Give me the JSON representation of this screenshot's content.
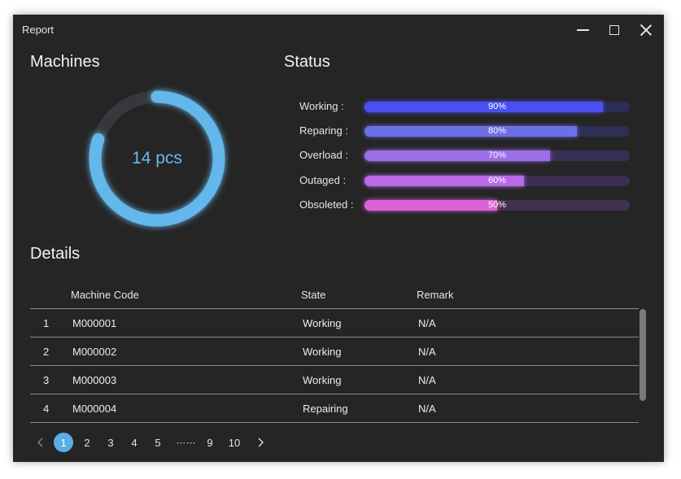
{
  "window": {
    "title": "Report"
  },
  "machines": {
    "heading": "Machines",
    "count_label": "14 pcs",
    "ring_fraction": 0.8,
    "ring_color": "#63b7ea",
    "ring_track_color": "#36383d"
  },
  "status": {
    "heading": "Status",
    "items": [
      {
        "label": "Working :",
        "value_text": "90%",
        "value": 0.9,
        "color": "#4b4ff2",
        "track": "#2a2d55"
      },
      {
        "label": "Reparing :",
        "value_text": "80%",
        "value": 0.8,
        "color": "#6c70e6",
        "track": "#2e2f52"
      },
      {
        "label": "Overload  :",
        "value_text": "70%",
        "value": 0.7,
        "color": "#9b6fe8",
        "track": "#392f54"
      },
      {
        "label": "Outaged :",
        "value_text": "60%",
        "value": 0.6,
        "color": "#b86ae6",
        "track": "#3c2e50"
      },
      {
        "label": "Obsoleted :",
        "value_text": "50%",
        "value": 0.5,
        "color": "#dc63d6",
        "track": "#43304a"
      }
    ]
  },
  "details": {
    "heading": "Details",
    "columns": [
      "Machine Code",
      "State",
      "Remark"
    ],
    "rows": [
      {
        "index": "1",
        "code": "M000001",
        "state": "Working",
        "remark": "N/A"
      },
      {
        "index": "2",
        "code": "M000002",
        "state": "Working",
        "remark": "N/A"
      },
      {
        "index": "3",
        "code": "M000003",
        "state": "Working",
        "remark": "N/A"
      },
      {
        "index": "4",
        "code": "M000004",
        "state": "Repairing",
        "remark": "N/A"
      }
    ]
  },
  "pagination": {
    "prev_icon": "chevron-left-icon",
    "next_icon": "chevron-right-icon",
    "pages": [
      "1",
      "2",
      "3",
      "4",
      "5"
    ],
    "ellipsis": "⋯ ⋯",
    "tail_pages": [
      "9",
      "10"
    ],
    "current": "1"
  }
}
